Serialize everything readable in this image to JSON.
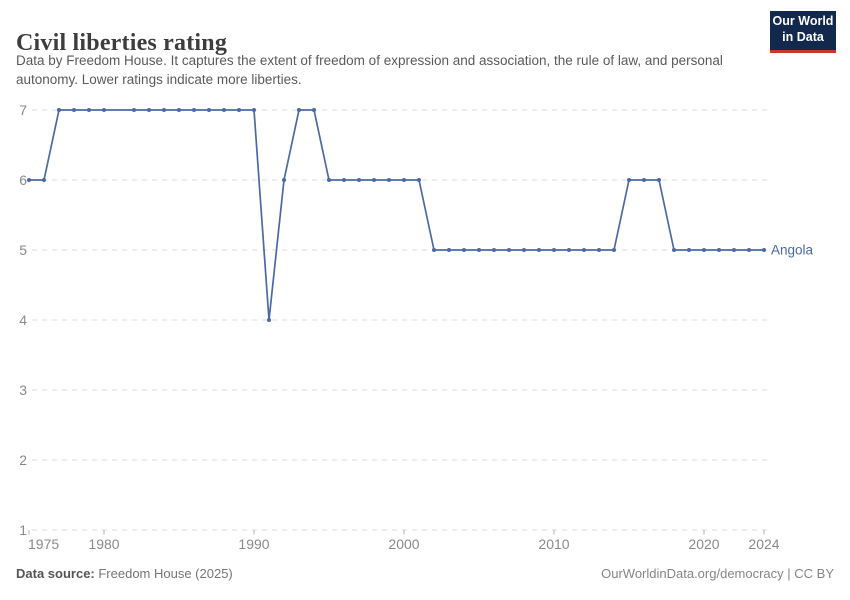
{
  "header": {
    "title": "Civil liberties rating",
    "subtitle_lines": [
      "Data by Freedom House. It captures the extent of freedom of expression and association, the rule of law, and",
      "personal autonomy. Lower ratings indicate more liberties."
    ],
    "logo": {
      "line1": "Our World",
      "line2": "in Data",
      "bg_color": "#12294d",
      "bar_color": "#c43a2d"
    }
  },
  "chart_data": {
    "type": "line",
    "title": "Civil liberties rating",
    "xlabel": "",
    "ylabel": "",
    "xlim": [
      1975,
      2024
    ],
    "ylim": [
      1,
      7
    ],
    "x_ticks": [
      1975,
      1980,
      1990,
      2000,
      2010,
      2020,
      2024
    ],
    "y_ticks": [
      1,
      2,
      3,
      4,
      5,
      6,
      7
    ],
    "grid": "horizontal-dashed",
    "legend_position": "end-of-line-label",
    "gap_years": [
      1981
    ],
    "series": [
      {
        "name": "Angola",
        "color": "#4a69a5",
        "points": [
          [
            1975,
            6
          ],
          [
            1976,
            6
          ],
          [
            1977,
            7
          ],
          [
            1978,
            7
          ],
          [
            1979,
            7
          ],
          [
            1980,
            7
          ],
          [
            1982,
            7
          ],
          [
            1983,
            7
          ],
          [
            1984,
            7
          ],
          [
            1985,
            7
          ],
          [
            1986,
            7
          ],
          [
            1987,
            7
          ],
          [
            1988,
            7
          ],
          [
            1989,
            7
          ],
          [
            1990,
            7
          ],
          [
            1991,
            4
          ],
          [
            1992,
            6
          ],
          [
            1993,
            7
          ],
          [
            1994,
            7
          ],
          [
            1995,
            6
          ],
          [
            1996,
            6
          ],
          [
            1997,
            6
          ],
          [
            1998,
            6
          ],
          [
            1999,
            6
          ],
          [
            2000,
            6
          ],
          [
            2001,
            6
          ],
          [
            2002,
            5
          ],
          [
            2003,
            5
          ],
          [
            2004,
            5
          ],
          [
            2005,
            5
          ],
          [
            2006,
            5
          ],
          [
            2007,
            5
          ],
          [
            2008,
            5
          ],
          [
            2009,
            5
          ],
          [
            2010,
            5
          ],
          [
            2011,
            5
          ],
          [
            2012,
            5
          ],
          [
            2013,
            5
          ],
          [
            2014,
            5
          ],
          [
            2015,
            6
          ],
          [
            2016,
            6
          ],
          [
            2017,
            6
          ],
          [
            2018,
            5
          ],
          [
            2019,
            5
          ],
          [
            2020,
            5
          ],
          [
            2021,
            5
          ],
          [
            2022,
            5
          ],
          [
            2023,
            5
          ],
          [
            2024,
            5
          ]
        ]
      }
    ],
    "colors": {
      "grid": "#dcdcdc",
      "axis_text": "#8a8a8a",
      "tick_mark": "#b5b5b5"
    }
  },
  "footer": {
    "datasource_label": "Data source:",
    "datasource_value": " Freedom House (2025)",
    "right_text": "OurWorldinData.org/democracy | CC BY"
  }
}
